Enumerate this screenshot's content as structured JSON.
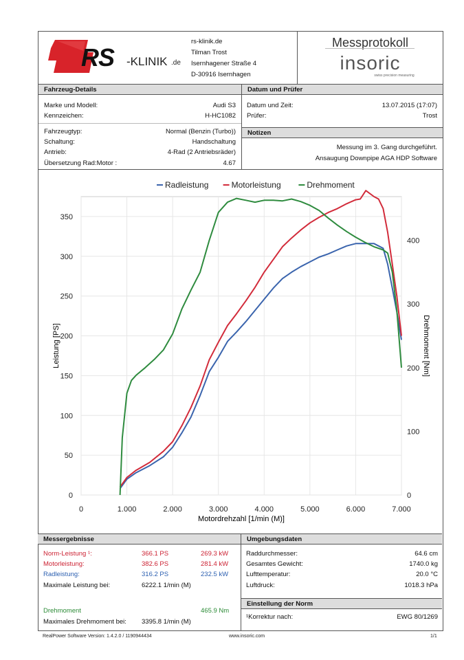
{
  "colors": {
    "rad": "#3a64ad",
    "motor": "#d22b3a",
    "moment": "#2e8b3e",
    "accent_red": "#cc2233"
  },
  "header": {
    "logo_main": "RS",
    "logo_suffix": "-KLINIK",
    "logo_domain": ".de",
    "address": [
      "rs-klinik.de",
      "Tilman Trost",
      "Isernhagener Straße 4",
      "D-30916 Isernhagen"
    ],
    "doc_title": "Messprotokoll",
    "brand": "insoric",
    "brand_tagline": "swiss precision measuring"
  },
  "vehicle": {
    "heading": "Fahrzeug-Details",
    "rows": [
      {
        "label": "Marke und Modell:",
        "value": "Audi S3"
      },
      {
        "label": "Kennzeichen:",
        "value": "H-HC1082"
      },
      {
        "label": "Fahrzeugtyp:",
        "value": "Normal (Benzin (Turbo))"
      },
      {
        "label": "Schaltung:",
        "value": "Handschaltung"
      },
      {
        "label": "Antrieb:",
        "value": "4-Rad (2 Antriebsräder)"
      },
      {
        "label": "Übersetzung Rad:Motor :",
        "value": "4.67"
      }
    ]
  },
  "date_tester": {
    "heading": "Datum und Prüfer",
    "date_label": "Datum und Zeit:",
    "date_value": "13.07.2015 (17:07)",
    "tester_label": "Prüfer:",
    "tester_value": "Trost"
  },
  "notes": {
    "heading": "Notizen",
    "lines": [
      "Messung im 3. Gang durchgeführt.",
      "Ansaugung Downpipe AGA HDP Software"
    ]
  },
  "chart_data": {
    "type": "line",
    "xlabel": "Motordrehzahl [1/min (M)]",
    "ylabel": "Leistung [PS]",
    "y2label": "Drehmoment [Nm]",
    "xlim": [
      0,
      7000
    ],
    "ylim": [
      0,
      375
    ],
    "y2lim": [
      0,
      468.75
    ],
    "x_ticks": [
      "0",
      "1.000",
      "2.000",
      "3.000",
      "4.000",
      "5.000",
      "6.000",
      "7.000"
    ],
    "y_ticks": [
      "0",
      "50",
      "100",
      "150",
      "200",
      "250",
      "300",
      "350"
    ],
    "y2_ticks": [
      "0",
      "100",
      "200",
      "300",
      "400"
    ],
    "legend_position": "top-center",
    "series": [
      {
        "name": "Radleistung",
        "axis": "left",
        "color": "#3a64ad",
        "x": [
          850,
          1000,
          1200,
          1500,
          1800,
          2000,
          2200,
          2400,
          2600,
          2800,
          3000,
          3200,
          3400,
          3600,
          3800,
          4000,
          4200,
          4400,
          4600,
          4800,
          5000,
          5200,
          5400,
          5600,
          5800,
          6000,
          6200,
          6400,
          6600,
          6700,
          6800,
          6900,
          7000
        ],
        "y": [
          8,
          20,
          28,
          37,
          48,
          60,
          78,
          98,
          125,
          155,
          173,
          193,
          205,
          218,
          232,
          246,
          260,
          272,
          280,
          287,
          293,
          299,
          303,
          308,
          313,
          316,
          316,
          316,
          310,
          290,
          260,
          230,
          195
        ]
      },
      {
        "name": "Motorleistung",
        "axis": "left",
        "color": "#d22b3a",
        "x": [
          850,
          1000,
          1200,
          1500,
          1800,
          2000,
          2200,
          2400,
          2600,
          2800,
          3000,
          3200,
          3400,
          3600,
          3800,
          4000,
          4200,
          4400,
          4600,
          4800,
          5000,
          5200,
          5400,
          5600,
          5800,
          6000,
          6100,
          6222,
          6400,
          6500,
          6600,
          6700,
          6800,
          6900,
          7000
        ],
        "y": [
          10,
          22,
          31,
          41,
          55,
          67,
          87,
          110,
          137,
          170,
          192,
          213,
          228,
          244,
          261,
          280,
          296,
          312,
          323,
          333,
          342,
          349,
          355,
          360,
          366,
          371,
          372,
          382.6,
          375,
          372,
          360,
          330,
          290,
          250,
          200
        ]
      },
      {
        "name": "Drehmoment",
        "axis": "right",
        "color": "#2e8b3e",
        "x": [
          850,
          900,
          1000,
          1100,
          1200,
          1400,
          1600,
          1800,
          2000,
          2200,
          2400,
          2600,
          2800,
          3000,
          3200,
          3395.8,
          3600,
          3800,
          4000,
          4200,
          4400,
          4600,
          4800,
          5000,
          5200,
          5400,
          5600,
          5800,
          6000,
          6200,
          6400,
          6600,
          6700,
          6800,
          6900,
          7000
        ],
        "y": [
          0,
          90,
          160,
          180,
          188,
          200,
          213,
          228,
          253,
          292,
          322,
          350,
          400,
          444,
          460,
          465.9,
          463,
          460,
          463,
          463,
          462,
          465,
          461,
          455,
          447,
          435,
          424,
          414,
          405,
          397,
          390,
          385,
          380,
          350,
          290,
          200
        ]
      }
    ]
  },
  "results": {
    "heading": "Messergebnisse",
    "rows": [
      {
        "label": "Norm-Leistung ¹:",
        "v1": "366.1 PS",
        "v2": "269.3 kW",
        "color": "red"
      },
      {
        "label": "Motorleistung:",
        "v1": "382.6 PS",
        "v2": "281.4 kW",
        "color": "red"
      },
      {
        "label": "Radleistung:",
        "v1": "316.2 PS",
        "v2": "232.5 kW",
        "color": "blue"
      },
      {
        "label": "Maximale Leistung bei:",
        "v1": "6222.1 1/min (M)",
        "v2": "",
        "color": "black"
      }
    ],
    "torque_label": "Drehmoment",
    "torque_value": "465.9 Nm",
    "torque_at_label": "Maximales Drehmoment bei:",
    "torque_at_value": "3395.8 1/min (M)"
  },
  "environment": {
    "heading": "Umgebungsdaten",
    "rows": [
      {
        "label": "Raddurchmesser:",
        "value": "64.6 cm"
      },
      {
        "label": "Gesamtes Gewicht:",
        "value": "1740.0 kg"
      },
      {
        "label": "Lufttemperatur:",
        "value": "20.0 °C"
      },
      {
        "label": "Luftdruck:",
        "value": "1018.3 hPa"
      }
    ]
  },
  "norm": {
    "heading": "Einstellung der Norm",
    "label": "¹Korrektur nach:",
    "value": "EWG 80/1269"
  },
  "footer": {
    "software": "RealPower Software Version: 1.4.2.0 / 1190944434",
    "url": "www.insoric.com",
    "page": "1/1"
  }
}
